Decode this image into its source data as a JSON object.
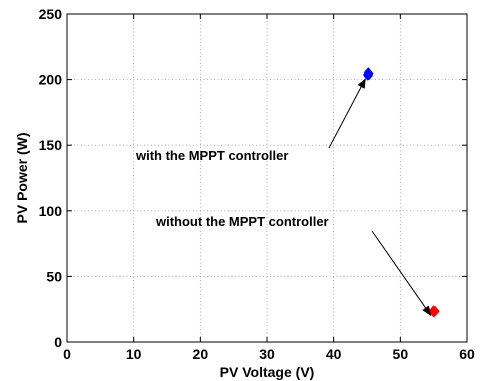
{
  "chart_data": {
    "type": "scatter",
    "title": "",
    "xlabel": "PV Voltage (V)",
    "ylabel": "PV Power (W)",
    "xlim": [
      0,
      60
    ],
    "ylim": [
      0,
      250
    ],
    "xticks": [
      "0",
      "10",
      "20",
      "30",
      "40",
      "50",
      "60"
    ],
    "yticks": [
      "0",
      "50",
      "100",
      "150",
      "200",
      "250"
    ],
    "grid": true,
    "series": [
      {
        "color": "#0000ff",
        "points": [
          [
            45.0,
            203.5
          ],
          [
            45.1,
            205.0
          ],
          [
            45.2,
            204.2
          ],
          [
            45.3,
            203.0
          ],
          [
            45.2,
            206.0
          ],
          [
            45.4,
            204.6
          ],
          [
            45.1,
            202.6
          ]
        ]
      },
      {
        "color": "#ff0000",
        "points": [
          [
            54.8,
            23.2
          ],
          [
            55.0,
            24.5
          ],
          [
            55.1,
            22.6
          ],
          [
            55.2,
            24.0
          ],
          [
            54.9,
            23.9
          ],
          [
            55.3,
            23.4
          ],
          [
            55.0,
            22.3
          ]
        ]
      }
    ],
    "annotations": [
      {
        "text": "with the MPPT controller",
        "points_to": [
          45.2,
          203.5
        ]
      },
      {
        "text": "without the MPPT controller",
        "points_to": [
          55.0,
          23.5
        ]
      }
    ]
  }
}
